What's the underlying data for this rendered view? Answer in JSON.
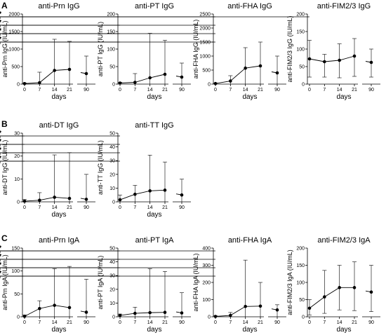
{
  "panel_letters": [
    "A",
    "B",
    "C"
  ],
  "chart_data": [
    {
      "type": "line",
      "panel": "A",
      "title": "anti-Prn IgG",
      "ylabel": "anti-Prn IgG (IU/mL)",
      "xlabel": "days",
      "x": [
        0,
        7,
        14,
        21,
        90
      ],
      "x_ticks": [
        "0",
        "7",
        "14",
        "21",
        "90"
      ],
      "ylim": [
        0,
        2000
      ],
      "y_ticks": [
        "0",
        "500",
        "1000",
        "1500",
        "2000"
      ],
      "values": [
        15,
        40,
        390,
        420,
        300
      ],
      "err_upper": [
        30,
        340,
        1280,
        1220,
        800
      ],
      "err_lower": [
        0,
        0,
        0,
        0,
        0
      ],
      "significance": [
        {
          "from": 0,
          "to": 7,
          "label": "*"
        },
        {
          "from": 0,
          "to": 14,
          "label": "*"
        },
        {
          "from": 0,
          "to": 21,
          "label": "*"
        },
        {
          "from": 0,
          "to": 90,
          "label": "*"
        }
      ]
    },
    {
      "type": "line",
      "panel": "A",
      "title": "anti-PT IgG",
      "ylabel": "anti-PT IgG (IU/mL)",
      "xlabel": "days",
      "x": [
        0,
        7,
        14,
        21,
        90
      ],
      "x_ticks": [
        "0",
        "7",
        "14",
        "21",
        "90"
      ],
      "ylim": [
        0,
        200
      ],
      "y_ticks": [
        "0",
        "50",
        "100",
        "150",
        "200"
      ],
      "values": [
        3,
        5,
        18,
        28,
        20
      ],
      "err_upper": [
        5,
        30,
        145,
        125,
        60
      ],
      "err_lower": [
        0,
        0,
        0,
        0,
        0
      ],
      "significance": [
        {
          "from": 0,
          "to": 7,
          "label": "*"
        },
        {
          "from": 0,
          "to": 14,
          "label": "*"
        },
        {
          "from": 0,
          "to": 21,
          "label": "*"
        },
        {
          "from": 0,
          "to": 90,
          "label": "*"
        }
      ]
    },
    {
      "type": "line",
      "panel": "A",
      "title": "anti-FHA IgG",
      "ylabel": "anti-FHA IgG (IU/mL)",
      "xlabel": "days",
      "x": [
        0,
        7,
        14,
        21,
        90
      ],
      "x_ticks": [
        "0",
        "7",
        "14",
        "21",
        "90"
      ],
      "ylim": [
        0,
        2500
      ],
      "y_ticks": [
        "0",
        "500",
        "1000",
        "1500",
        "2000",
        "2500"
      ],
      "values": [
        20,
        110,
        570,
        650,
        400
      ],
      "err_upper": [
        40,
        300,
        1300,
        1500,
        1000
      ],
      "err_lower": [
        0,
        0,
        0,
        0,
        0
      ],
      "significance": [
        {
          "from": 0,
          "to": 7,
          "label": "*"
        },
        {
          "from": 0,
          "to": 14,
          "label": "*"
        },
        {
          "from": 0,
          "to": 21,
          "label": "*"
        },
        {
          "from": 0,
          "to": 90,
          "label": "*"
        }
      ]
    },
    {
      "type": "line",
      "panel": "A",
      "title": "anti-FIM2/3 IgG",
      "ylabel": "anti-FIM2/3 IgG (IU/mL)",
      "xlabel": "days",
      "x": [
        0,
        7,
        14,
        21,
        90
      ],
      "x_ticks": [
        "0",
        "7",
        "14",
        "21",
        "90"
      ],
      "ylim": [
        0,
        200
      ],
      "y_ticks": [
        "0",
        "50",
        "100",
        "150",
        "200"
      ],
      "values": [
        72,
        64,
        68,
        80,
        62
      ],
      "err_upper": [
        125,
        85,
        115,
        130,
        100
      ],
      "err_lower": [
        20,
        20,
        18,
        22,
        20
      ],
      "significance": [
        {
          "from": 0,
          "to": 21,
          "label": "*"
        }
      ]
    },
    {
      "type": "line",
      "panel": "B",
      "title": "anti-DT IgG",
      "ylabel": "anti-DT IgG (IU/mL)",
      "xlabel": "days",
      "x": [
        0,
        7,
        14,
        21,
        90
      ],
      "x_ticks": [
        "0",
        "7",
        "14",
        "21",
        "90"
      ],
      "ylim": [
        0,
        30
      ],
      "y_ticks": [
        "0",
        "10",
        "20",
        "30"
      ],
      "values": [
        0.3,
        0.7,
        2,
        1.5,
        1.1
      ],
      "err_upper": [
        1,
        4,
        20.5,
        21.5,
        12
      ],
      "err_lower": [
        0,
        0,
        0,
        0,
        0
      ],
      "significance": [
        {
          "from": 0,
          "to": 7,
          "label": "*"
        },
        {
          "from": 0,
          "to": 14,
          "label": "*"
        },
        {
          "from": 0,
          "to": 21,
          "label": "*"
        },
        {
          "from": 0,
          "to": 90,
          "label": "*"
        }
      ]
    },
    {
      "type": "line",
      "panel": "B",
      "title": "anti-TT IgG",
      "ylabel": "anti-TT IgG (IU/mL)",
      "xlabel": "days",
      "x": [
        0,
        7,
        14,
        21,
        90
      ],
      "x_ticks": [
        "0",
        "7",
        "14",
        "21",
        "90"
      ],
      "ylim": [
        0,
        50
      ],
      "y_ticks": [
        "0",
        "10",
        "20",
        "30",
        "40",
        "50"
      ],
      "values": [
        1.5,
        5.5,
        8,
        8.5,
        5
      ],
      "err_upper": [
        5,
        12,
        34,
        29,
        16.5
      ],
      "err_lower": [
        0,
        0,
        0,
        0,
        0
      ],
      "significance": [
        {
          "from": 0,
          "to": 7,
          "label": "*"
        },
        {
          "from": 0,
          "to": 14,
          "label": "*"
        },
        {
          "from": 0,
          "to": 21,
          "label": "*"
        },
        {
          "from": 0,
          "to": 90,
          "label": "*"
        }
      ]
    },
    {
      "type": "line",
      "panel": "C",
      "title": "anti-Prn IgA",
      "ylabel": "anti-Prn IgA (IU/mL)",
      "xlabel": "days",
      "x": [
        0,
        7,
        14,
        21,
        90
      ],
      "x_ticks": [
        "0",
        "7",
        "14",
        "21",
        "90"
      ],
      "ylim": [
        0,
        150
      ],
      "y_ticks": [
        "0",
        "50",
        "100",
        "150"
      ],
      "values": [
        1,
        18,
        25,
        20,
        10
      ],
      "err_upper": [
        4,
        35,
        105,
        110,
        82
      ],
      "err_lower": [
        0,
        0,
        0,
        0,
        0
      ],
      "significance": [
        {
          "from": 0,
          "to": 7,
          "label": "*"
        },
        {
          "from": 0,
          "to": 14,
          "label": "*"
        },
        {
          "from": 0,
          "to": 21,
          "label": "*"
        },
        {
          "from": 0,
          "to": 90,
          "label": "*"
        }
      ]
    },
    {
      "type": "line",
      "panel": "C",
      "title": "anti-PT IgA",
      "ylabel": "anti-PT IgA (IU/mL)",
      "xlabel": "days",
      "x": [
        0,
        7,
        14,
        21,
        90
      ],
      "x_ticks": [
        "0",
        "7",
        "14",
        "21",
        "90"
      ],
      "ylim": [
        0,
        50
      ],
      "y_ticks": [
        "0",
        "10",
        "20",
        "30",
        "40",
        "50"
      ],
      "values": [
        1,
        2.5,
        3,
        3.2,
        2.8
      ],
      "err_upper": [
        2,
        7,
        35,
        33,
        17.5
      ],
      "err_lower": [
        0,
        0,
        0,
        0,
        0
      ],
      "significance": [
        {
          "from": 0,
          "to": 7,
          "label": "*"
        },
        {
          "from": 0,
          "to": 14,
          "label": "*"
        },
        {
          "from": 0,
          "to": 21,
          "label": "*"
        },
        {
          "from": 0,
          "to": 90,
          "label": "*"
        }
      ]
    },
    {
      "type": "line",
      "panel": "C",
      "title": "anti-FHA IgA",
      "ylabel": "anti-FHA IgA (IU/mL)",
      "xlabel": "days",
      "x": [
        0,
        7,
        14,
        21,
        90
      ],
      "x_ticks": [
        "0",
        "7",
        "14",
        "21",
        "90"
      ],
      "ylim": [
        0,
        400
      ],
      "y_ticks": [
        "0",
        "100",
        "200",
        "300",
        "400"
      ],
      "values": [
        2,
        8,
        60,
        62,
        40
      ],
      "err_upper": [
        6,
        25,
        330,
        200,
        70
      ],
      "err_lower": [
        0,
        0,
        0,
        0,
        0
      ],
      "significance": [
        {
          "from": 0,
          "to": 7,
          "label": "*"
        },
        {
          "from": 0,
          "to": 14,
          "label": "*"
        },
        {
          "from": 0,
          "to": 21,
          "label": "*"
        },
        {
          "from": 0,
          "to": 90,
          "label": "*"
        }
      ]
    },
    {
      "type": "line",
      "panel": "C",
      "title": "anti-FIM2/3 IgA",
      "ylabel": "anti-FIM2/3 IgA (IU/mL)",
      "xlabel": "days",
      "x": [
        0,
        7,
        14,
        21,
        90
      ],
      "x_ticks": [
        "0",
        "7",
        "14",
        "21",
        "90"
      ],
      "ylim": [
        0,
        200
      ],
      "y_ticks": [
        "0",
        "50",
        "100",
        "150",
        "200"
      ],
      "values": [
        25,
        58,
        85,
        85,
        72
      ],
      "err_upper": [
        50,
        135,
        150,
        160,
        150
      ],
      "err_lower": [
        5,
        10,
        20,
        18,
        15
      ],
      "significance": []
    }
  ]
}
